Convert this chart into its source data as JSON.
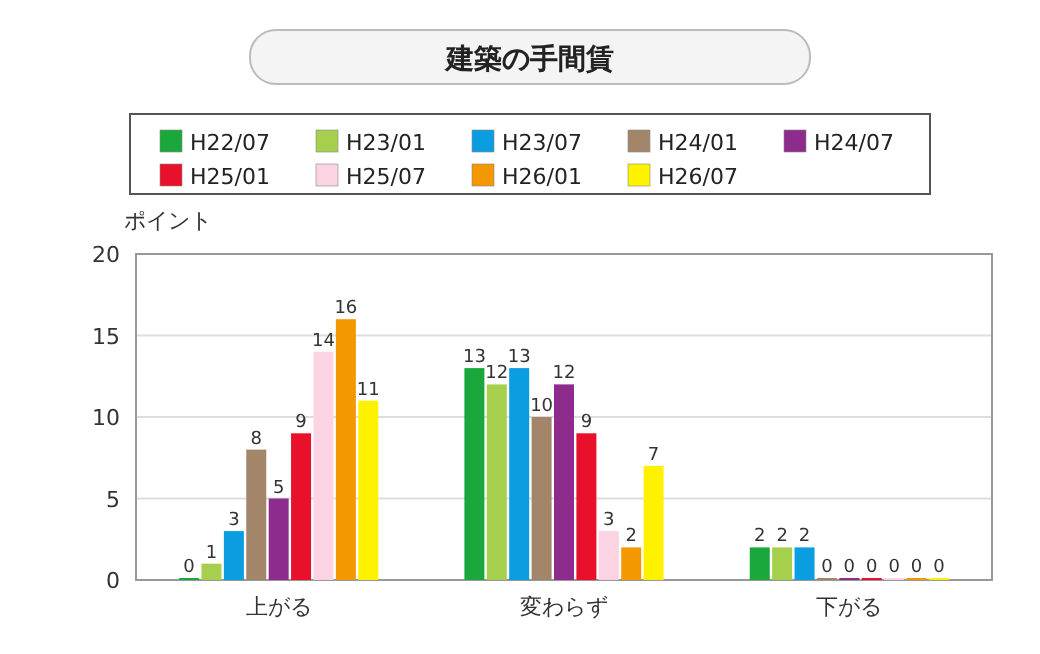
{
  "chart_data": {
    "type": "bar",
    "title": "建築の手間賃",
    "ylabel": "ポイント",
    "categories": [
      "上がる",
      "変わらず",
      "下がる"
    ],
    "series": [
      {
        "name": "H22/07",
        "color": "#1aa83c",
        "values": [
          0,
          13,
          2
        ]
      },
      {
        "name": "H23/01",
        "color": "#a5cf4c",
        "values": [
          1,
          12,
          2
        ]
      },
      {
        "name": "H23/07",
        "color": "#0a9de0",
        "values": [
          3,
          13,
          2
        ]
      },
      {
        "name": "H24/01",
        "color": "#a3866a",
        "values": [
          8,
          10,
          0
        ]
      },
      {
        "name": "H24/07",
        "color": "#8e2c8e",
        "values": [
          5,
          12,
          0
        ]
      },
      {
        "name": "H25/01",
        "color": "#e8102a",
        "values": [
          9,
          9,
          0
        ]
      },
      {
        "name": "H25/07",
        "color": "#fbd3e3",
        "values": [
          14,
          3,
          0
        ]
      },
      {
        "name": "H26/01",
        "color": "#f39800",
        "values": [
          16,
          2,
          0
        ]
      },
      {
        "name": "H26/07",
        "color": "#fff200",
        "values": [
          11,
          7,
          0
        ]
      }
    ],
    "ylim": [
      0,
      20
    ],
    "yticks": [
      0,
      5,
      10,
      15,
      20
    ],
    "grid": "y",
    "legend": "top",
    "data_labels": true
  }
}
